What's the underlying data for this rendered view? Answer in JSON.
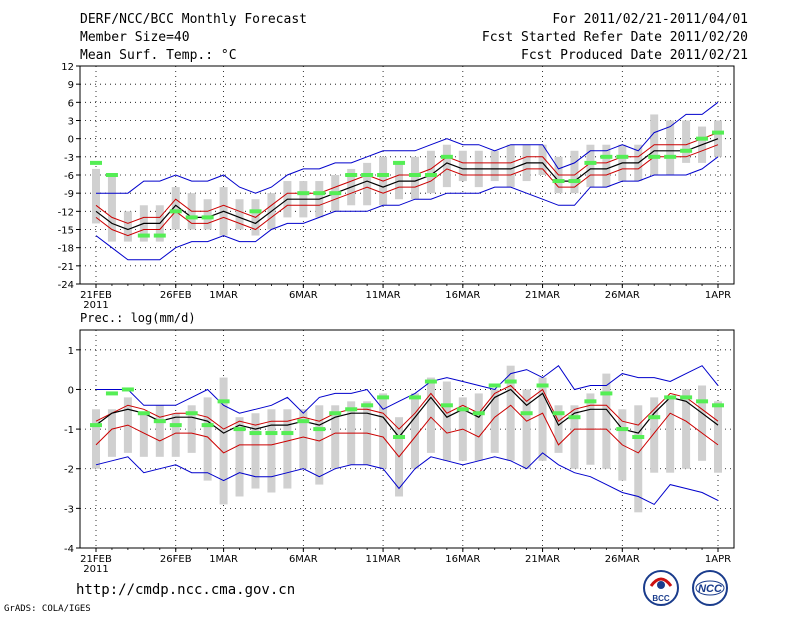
{
  "header": {
    "title": "DERF/NCC/BCC Monthly Forecast",
    "member_size": "Member Size=40",
    "variable": "Mean Surf. Temp.: °C",
    "period": "For 2011/02/21-2011/04/01",
    "started": "Fcst Started Refer Date 2011/02/20",
    "produced": "Fcst Produced Date 2011/02/21"
  },
  "footer": {
    "url": "http://cmdp.ncc.cma.gov.cn",
    "grads": "GrADS: COLA/IGES",
    "logo_bcc": "BCC",
    "logo_ncc": "NCC"
  },
  "colors": {
    "ensemble_mean": "#000000",
    "spread": "#cc0000",
    "envelope": "#0000cc",
    "box": "#d0d0d0",
    "obs_marker": "#55ee55"
  },
  "chart_data": [
    {
      "type": "line",
      "title": "Mean Surf. Temp.: °C",
      "x": [
        "21FEB",
        "22FEB",
        "23FEB",
        "24FEB",
        "25FEB",
        "26FEB",
        "27FEB",
        "28FEB",
        "1MAR",
        "2MAR",
        "3MAR",
        "4MAR",
        "5MAR",
        "6MAR",
        "7MAR",
        "8MAR",
        "9MAR",
        "10MAR",
        "11MAR",
        "12MAR",
        "13MAR",
        "14MAR",
        "15MAR",
        "16MAR",
        "17MAR",
        "18MAR",
        "19MAR",
        "20MAR",
        "21MAR",
        "22MAR",
        "23MAR",
        "24MAR",
        "25MAR",
        "26MAR",
        "27MAR",
        "28MAR",
        "29MAR",
        "30MAR",
        "31MAR",
        "1APR"
      ],
      "x_tick_labels": [
        "21FEB",
        "26FEB",
        "1MAR",
        "6MAR",
        "11MAR",
        "16MAR",
        "21MAR",
        "26MAR",
        "1APR"
      ],
      "x_tick_index": [
        0,
        5,
        8,
        13,
        18,
        23,
        28,
        33,
        39
      ],
      "x_sublabel": "2011",
      "ylim": [
        -24,
        12
      ],
      "yticks": [
        -24,
        -21,
        -18,
        -15,
        -12,
        -9,
        -6,
        -3,
        0,
        3,
        6,
        9,
        12
      ],
      "series": [
        {
          "name": "max",
          "values": [
            -9,
            -9,
            -9,
            -7,
            -7,
            -6,
            -7,
            -7,
            -6,
            -8,
            -9,
            -8,
            -6,
            -5,
            -5,
            -4,
            -4,
            -3,
            -2,
            -2,
            -2,
            -1,
            0,
            -1,
            -1,
            -2,
            -1,
            -1,
            -1,
            -5,
            -4,
            -2,
            -2,
            -1,
            -2,
            1,
            2,
            4,
            4,
            6
          ]
        },
        {
          "name": "upper",
          "values": [
            -11,
            -13,
            -14,
            -13,
            -13,
            -10,
            -12,
            -12,
            -11,
            -12,
            -13,
            -11,
            -9,
            -9,
            -9,
            -8,
            -7,
            -6,
            -7,
            -6,
            -6,
            -5,
            -3,
            -4,
            -4,
            -4,
            -4,
            -3,
            -3,
            -6,
            -6,
            -4,
            -4,
            -3,
            -3,
            -1,
            -1,
            -1,
            0,
            1
          ]
        },
        {
          "name": "mean",
          "values": [
            -12,
            -14,
            -15,
            -14,
            -14,
            -11,
            -13,
            -13,
            -12,
            -13,
            -14,
            -12,
            -10,
            -10,
            -10,
            -9,
            -8,
            -7,
            -8,
            -7,
            -7,
            -6,
            -4,
            -5,
            -5,
            -5,
            -5,
            -4,
            -4,
            -7,
            -7,
            -5,
            -5,
            -4,
            -4,
            -2,
            -2,
            -2,
            -1,
            0
          ]
        },
        {
          "name": "lower",
          "values": [
            -13,
            -15,
            -16,
            -15,
            -15,
            -12,
            -14,
            -14,
            -13,
            -14,
            -15,
            -13,
            -11,
            -11,
            -11,
            -10,
            -9,
            -8,
            -9,
            -8,
            -8,
            -7,
            -5,
            -6,
            -6,
            -6,
            -6,
            -5,
            -5,
            -8,
            -8,
            -6,
            -6,
            -5,
            -5,
            -3,
            -3,
            -3,
            -2,
            -1
          ]
        },
        {
          "name": "min",
          "values": [
            -16,
            -18,
            -20,
            -20,
            -20,
            -18,
            -17,
            -17,
            -16,
            -17,
            -17,
            -15,
            -14,
            -14,
            -13,
            -12,
            -12,
            -12,
            -11,
            -11,
            -10,
            -10,
            -9,
            -9,
            -9,
            -8,
            -8,
            -9,
            -10,
            -11,
            -11,
            -8,
            -8,
            -7,
            -7,
            -6,
            -6,
            -6,
            -5,
            -3
          ]
        },
        {
          "name": "box_top",
          "values": [
            -5,
            -6,
            -12,
            -11,
            -11,
            -8,
            -9,
            -10,
            -8,
            -10,
            -10,
            -9,
            -7,
            -7,
            -7,
            -6,
            -5,
            -4,
            -3,
            -4,
            -3,
            -2,
            -1,
            -2,
            -2,
            -2,
            -1,
            -1,
            -1,
            -3,
            -2,
            -1,
            -1,
            -1,
            -1,
            4,
            3,
            3,
            2,
            3
          ]
        },
        {
          "name": "box_bot",
          "values": [
            -14,
            -17,
            -17,
            -17,
            -17,
            -15,
            -15,
            -15,
            -16,
            -15,
            -16,
            -15,
            -13,
            -13,
            -13,
            -12,
            -11,
            -11,
            -11,
            -10,
            -10,
            -9,
            -8,
            -7,
            -8,
            -7,
            -8,
            -7,
            -6,
            -9,
            -9,
            -8,
            -8,
            -7,
            -7,
            -6,
            -6,
            -4,
            -4,
            -3
          ]
        },
        {
          "name": "obs",
          "values": [
            -4,
            -6,
            null,
            -16,
            -16,
            -12,
            -13,
            -13,
            null,
            null,
            -12,
            null,
            null,
            -9,
            -9,
            -9,
            -6,
            -6,
            -6,
            -4,
            -6,
            -6,
            -3,
            null,
            null,
            null,
            null,
            null,
            null,
            -7,
            -7,
            -4,
            -3,
            -3,
            null,
            -3,
            -3,
            -2,
            0,
            1
          ]
        }
      ]
    },
    {
      "type": "line",
      "title": "Prec.: log(mm/d)",
      "x": [
        "21FEB",
        "22FEB",
        "23FEB",
        "24FEB",
        "25FEB",
        "26FEB",
        "27FEB",
        "28FEB",
        "1MAR",
        "2MAR",
        "3MAR",
        "4MAR",
        "5MAR",
        "6MAR",
        "7MAR",
        "8MAR",
        "9MAR",
        "10MAR",
        "11MAR",
        "12MAR",
        "13MAR",
        "14MAR",
        "15MAR",
        "16MAR",
        "17MAR",
        "18MAR",
        "19MAR",
        "20MAR",
        "21MAR",
        "22MAR",
        "23MAR",
        "24MAR",
        "25MAR",
        "26MAR",
        "27MAR",
        "28MAR",
        "29MAR",
        "30MAR",
        "31MAR",
        "1APR"
      ],
      "x_tick_labels": [
        "21FEB",
        "26FEB",
        "1MAR",
        "6MAR",
        "11MAR",
        "16MAR",
        "21MAR",
        "26MAR",
        "1APR"
      ],
      "x_tick_index": [
        0,
        5,
        8,
        13,
        18,
        23,
        28,
        33,
        39
      ],
      "x_sublabel": "2011",
      "ylim": [
        -4,
        1.5
      ],
      "yticks": [
        -4,
        -3,
        -2,
        -1,
        0,
        1
      ],
      "series": [
        {
          "name": "max",
          "values": [
            0,
            0,
            0,
            -0.4,
            -0.4,
            -0.4,
            -0.2,
            0,
            -0.4,
            -0.6,
            -0.5,
            -0.4,
            -0.2,
            -0.6,
            -0.2,
            -0.1,
            -0.1,
            0,
            -0.5,
            -0.3,
            -0.1,
            0.2,
            0.3,
            0.2,
            0.1,
            0,
            0.4,
            0.5,
            0.3,
            0.6,
            0,
            0.1,
            0.1,
            0.4,
            0.3,
            0.3,
            0.2,
            0.4,
            0.6,
            0.1
          ]
        },
        {
          "name": "upper",
          "values": [
            -0.8,
            -0.6,
            -0.4,
            -0.5,
            -0.7,
            -0.6,
            -0.6,
            -0.7,
            -1.0,
            -0.8,
            -0.9,
            -0.8,
            -0.8,
            -0.7,
            -0.8,
            -0.6,
            -0.5,
            -0.5,
            -0.6,
            -1.0,
            -0.6,
            -0.1,
            -0.6,
            -0.4,
            -0.6,
            -0.1,
            0.1,
            -0.3,
            0.0,
            -0.8,
            -0.5,
            -0.4,
            -0.4,
            -0.8,
            -0.9,
            -0.5,
            -0.1,
            -0.2,
            -0.5,
            -0.8
          ]
        },
        {
          "name": "mean",
          "values": [
            -0.9,
            -0.6,
            -0.5,
            -0.6,
            -0.8,
            -0.7,
            -0.7,
            -0.8,
            -1.1,
            -0.9,
            -1.0,
            -0.9,
            -0.9,
            -0.8,
            -0.9,
            -0.7,
            -0.6,
            -0.6,
            -0.7,
            -1.2,
            -0.7,
            -0.2,
            -0.7,
            -0.5,
            -0.7,
            -0.2,
            0.0,
            -0.4,
            -0.1,
            -0.9,
            -0.6,
            -0.5,
            -0.5,
            -1.0,
            -1.1,
            -0.6,
            -0.2,
            -0.3,
            -0.6,
            -0.9
          ]
        },
        {
          "name": "lower",
          "values": [
            -1.4,
            -1.0,
            -0.9,
            -1.1,
            -1.3,
            -1.1,
            -1.1,
            -1.2,
            -1.6,
            -1.4,
            -1.4,
            -1.4,
            -1.3,
            -1.2,
            -1.3,
            -1.1,
            -1.1,
            -1.1,
            -1.2,
            -1.7,
            -1.2,
            -0.7,
            -1.1,
            -1.0,
            -1.2,
            -0.7,
            -0.4,
            -0.8,
            -0.6,
            -1.4,
            -1.0,
            -1.0,
            -1.0,
            -1.4,
            -1.6,
            -1.1,
            -0.6,
            -0.8,
            -1.1,
            -1.4
          ]
        },
        {
          "name": "min",
          "values": [
            -1.9,
            -1.8,
            -1.7,
            -2.1,
            -2.0,
            -1.9,
            -2.1,
            -2.1,
            -2.3,
            -2.1,
            -2.2,
            -2.2,
            -2.1,
            -2.0,
            -2.2,
            -2.0,
            -1.9,
            -1.9,
            -2.0,
            -2.5,
            -2.0,
            -1.7,
            -1.8,
            -1.9,
            -1.8,
            -1.7,
            -1.8,
            -2.0,
            -1.6,
            -1.9,
            -2.1,
            -2.2,
            -2.4,
            -2.6,
            -2.7,
            -2.9,
            -2.4,
            -2.5,
            -2.6,
            -2.8
          ]
        },
        {
          "name": "box_top",
          "values": [
            -0.5,
            -0.5,
            -0.2,
            -0.6,
            -0.4,
            -0.6,
            -0.4,
            -0.2,
            0.3,
            -0.7,
            -0.6,
            -0.5,
            -0.5,
            -0.5,
            -0.4,
            -0.4,
            -0.3,
            -0.3,
            -0.1,
            -0.7,
            -0.1,
            0.3,
            0.2,
            -0.2,
            -0.1,
            0.0,
            0.6,
            0.0,
            0.3,
            -0.4,
            -0.4,
            -0.1,
            0.4,
            -0.5,
            -0.4,
            -0.2,
            -0.2,
            0.0,
            0.1,
            -0.3
          ]
        },
        {
          "name": "box_bot",
          "values": [
            -2.0,
            -1.7,
            -1.6,
            -1.7,
            -1.7,
            -1.7,
            -1.6,
            -2.3,
            -2.9,
            -2.7,
            -2.5,
            -2.6,
            -2.5,
            -2.0,
            -2.4,
            -2.0,
            -1.9,
            -1.9,
            -2.0,
            -2.7,
            -2.0,
            -1.6,
            -1.8,
            -1.8,
            -1.8,
            -1.6,
            -1.8,
            -2.0,
            -1.8,
            -1.6,
            -2.0,
            -1.9,
            -2.0,
            -2.3,
            -3.1,
            -2.1,
            -2.1,
            -2.0,
            -1.8,
            -2.1
          ]
        },
        {
          "name": "obs",
          "values": [
            -0.9,
            -0.1,
            0.0,
            -0.6,
            -0.8,
            -0.9,
            -0.6,
            -0.9,
            -0.3,
            -1.0,
            -1.1,
            -1.1,
            -1.1,
            -0.8,
            -1.0,
            -0.6,
            -0.5,
            -0.4,
            -0.2,
            -1.2,
            -0.2,
            0.2,
            -0.4,
            -0.5,
            -0.6,
            0.1,
            0.2,
            -0.6,
            0.1,
            -0.6,
            -0.7,
            -0.3,
            -0.1,
            -1.0,
            -1.2,
            -0.7,
            -0.2,
            -0.2,
            -0.3,
            -0.4
          ]
        }
      ]
    }
  ]
}
